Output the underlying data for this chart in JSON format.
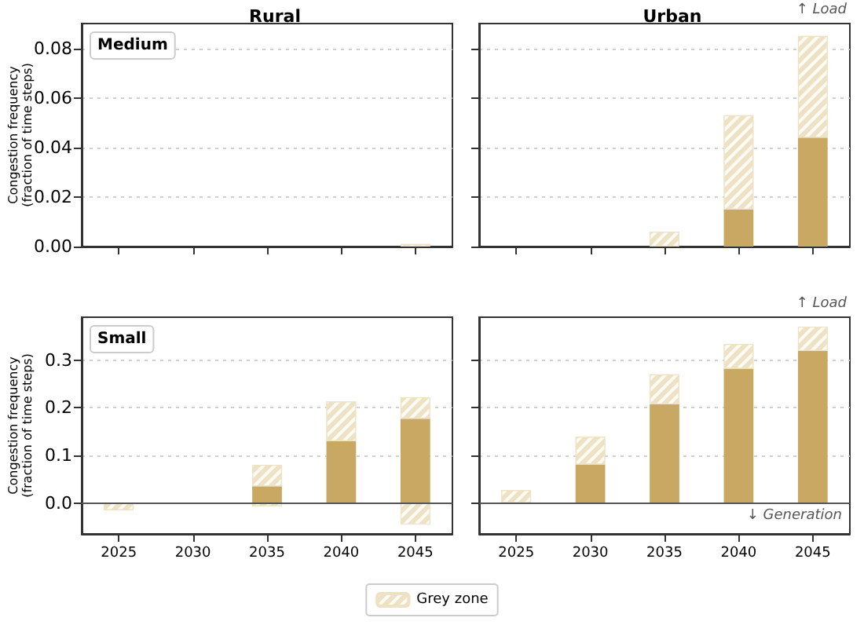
{
  "chart_data": [
    {
      "type": "bar",
      "title": "Rural",
      "ylabel": "Congestion frequency\n(fraction of time steps)",
      "categories": [
        "2025",
        "2030",
        "2035",
        "2040",
        "2045"
      ],
      "stacked": true,
      "ylim": [
        0,
        0.09
      ],
      "yticks": [
        {
          "value": 0,
          "label": "0.00"
        },
        {
          "value": 0.02,
          "label": "0.02"
        },
        {
          "value": 0.04,
          "label": "0.04"
        },
        {
          "value": 0.06,
          "label": "0.06"
        },
        {
          "value": 0.08,
          "label": "0.08"
        }
      ],
      "grid": "y",
      "tick_labels": "y",
      "annotations": [
        "Medium"
      ],
      "series": [
        {
          "color": "#c8a862",
          "values": [
            0,
            0,
            0,
            0,
            0
          ]
        },
        {
          "color": "#eee2c4",
          "values": [
            0,
            0,
            0,
            0,
            0.001
          ]
        }
      ]
    },
    {
      "type": "bar",
      "title": "Urban",
      "categories": [
        "2025",
        "2030",
        "2035",
        "2040",
        "2045"
      ],
      "stacked": true,
      "ylim": [
        0,
        0.09
      ],
      "yticks": [
        {
          "value": 0,
          "label": null
        },
        {
          "value": 0.02,
          "label": null
        },
        {
          "value": 0.04,
          "label": null
        },
        {
          "value": 0.06,
          "label": null
        },
        {
          "value": 0.08,
          "label": null
        }
      ],
      "grid": "y",
      "tick_labels": false,
      "annotations": [
        "↑ Load"
      ],
      "series": [
        {
          "color": "#c8a862",
          "values": [
            0,
            0,
            0,
            0.015,
            0.044
          ]
        },
        {
          "color": "#eee2c4",
          "values": [
            0,
            0,
            0.006,
            0.038,
            0.041
          ]
        }
      ]
    },
    {
      "type": "bar",
      "ylabel": "Congestion frequency\n(fraction of time steps)",
      "categories": [
        "2025",
        "2030",
        "2035",
        "2040",
        "2045"
      ],
      "stacked": true,
      "ylim": [
        -0.065,
        0.39
      ],
      "yticks": [
        {
          "value": 0,
          "label": "0.0"
        },
        {
          "value": 0.1,
          "label": "0.1"
        },
        {
          "value": 0.2,
          "label": "0.2"
        },
        {
          "value": 0.3,
          "label": "0.3"
        }
      ],
      "grid": "y",
      "annotations": [
        "Small"
      ],
      "ref_lines": [
        {
          "axis": "y",
          "value": 0,
          "color": "#555555"
        }
      ],
      "series": [
        {
          "color": "#c8a862",
          "values": [
            0,
            0,
            0.035,
            0.13,
            0.177
          ]
        },
        {
          "color": "#eee2c4",
          "values": [
            0,
            0,
            0.045,
            0.083,
            0.045
          ]
        },
        {
          "color": "#eee2c4",
          "values": [
            -0.015,
            null,
            -0.007,
            null,
            -0.045
          ]
        }
      ]
    },
    {
      "type": "bar",
      "categories": [
        "2025",
        "2030",
        "2035",
        "2040",
        "2045"
      ],
      "stacked": true,
      "ylim": [
        -0.065,
        0.39
      ],
      "yticks": [
        {
          "value": 0,
          "label": null
        },
        {
          "value": 0.1,
          "label": null
        },
        {
          "value": 0.2,
          "label": null
        },
        {
          "value": 0.3,
          "label": null
        }
      ],
      "grid": "y",
      "tick_labels": "x",
      "annotations": [
        "↑ Load",
        "↓ Generation"
      ],
      "ref_lines": [
        {
          "axis": "y",
          "value": 0,
          "color": "#555555"
        }
      ],
      "legend": "bottom",
      "series": [
        {
          "color": "#c8a862",
          "values": [
            0,
            0.081,
            0.207,
            0.282,
            0.319
          ]
        },
        {
          "name": "Grey zone",
          "color": "#eee2c4",
          "values": [
            0.027,
            0.058,
            0.063,
            0.052,
            0.051
          ]
        }
      ]
    }
  ]
}
